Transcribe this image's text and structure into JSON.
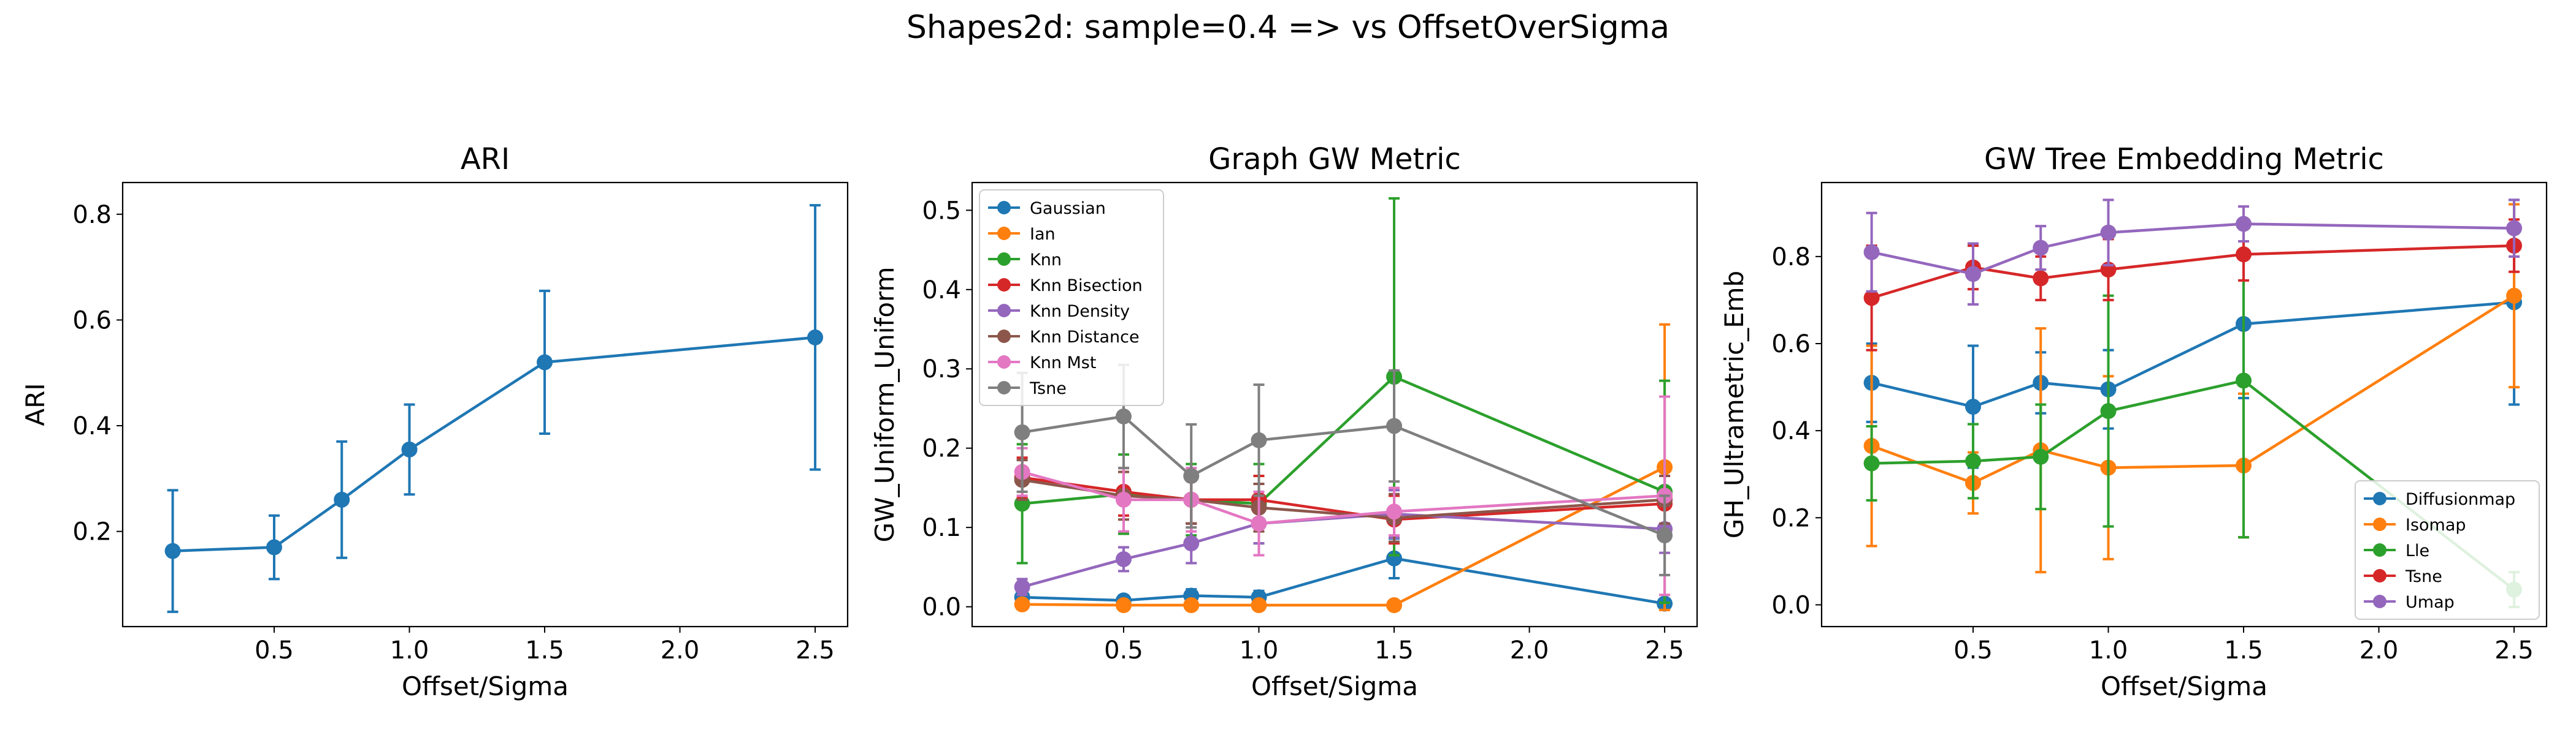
{
  "figure": {
    "suptitle": "Shapes2d: sample=0.4 => vs OffsetOverSigma"
  },
  "chart_data": [
    {
      "type": "line",
      "title": "ARI",
      "xlabel": "Offset/Sigma",
      "ylabel": "ARI",
      "x": [
        0.125,
        0.5,
        0.75,
        1.0,
        1.5,
        2.5
      ],
      "xlim": [
        -0.06,
        2.62
      ],
      "ylim": [
        0.02,
        0.86
      ],
      "xticks": [
        0.5,
        1.0,
        1.5,
        2.0,
        2.5
      ],
      "xticklabels": [
        "0.5",
        "1.0",
        "1.5",
        "2.0",
        "2.5"
      ],
      "yticks": [
        0.2,
        0.4,
        0.6,
        0.8
      ],
      "yticklabels": [
        "0.2",
        "0.4",
        "0.6",
        "0.8"
      ],
      "legend": null,
      "series": [
        {
          "name": "",
          "color": "#1f77b4",
          "values": [
            0.163,
            0.17,
            0.26,
            0.355,
            0.52,
            0.567
          ],
          "err": [
            0.115,
            0.06,
            0.11,
            0.085,
            0.135,
            0.25
          ]
        }
      ]
    },
    {
      "type": "line",
      "title": "Graph GW Metric",
      "xlabel": "Offset/Sigma",
      "ylabel": "GW_Uniform_Uniform",
      "x": [
        0.125,
        0.5,
        0.75,
        1.0,
        1.5,
        2.5
      ],
      "xlim": [
        -0.06,
        2.62
      ],
      "ylim": [
        -0.025,
        0.535
      ],
      "xticks": [
        0.5,
        1.0,
        1.5,
        2.0,
        2.5
      ],
      "xticklabels": [
        "0.5",
        "1.0",
        "1.5",
        "2.0",
        "2.5"
      ],
      "yticks": [
        0.0,
        0.1,
        0.2,
        0.3,
        0.4,
        0.5
      ],
      "yticklabels": [
        "0.0",
        "0.1",
        "0.2",
        "0.3",
        "0.4",
        "0.5"
      ],
      "legend": "upper-left",
      "series": [
        {
          "name": "Gaussian",
          "color": "#1f77b4",
          "values": [
            0.012,
            0.008,
            0.014,
            0.012,
            0.061,
            0.004
          ],
          "err": [
            0.008,
            0.006,
            0.008,
            0.008,
            0.025,
            0.004
          ]
        },
        {
          "name": "Ian",
          "color": "#ff7f0e",
          "values": [
            0.003,
            0.002,
            0.002,
            0.002,
            0.002,
            0.176
          ],
          "err": [
            0.003,
            0.002,
            0.002,
            0.002,
            0.002,
            0.18
          ]
        },
        {
          "name": "Knn",
          "color": "#2ca02c",
          "values": [
            0.13,
            0.142,
            0.135,
            0.13,
            0.29,
            0.145
          ],
          "err": [
            0.075,
            0.05,
            0.045,
            0.05,
            0.225,
            0.14
          ]
        },
        {
          "name": "Knn Bisection",
          "color": "#d62728",
          "values": [
            0.163,
            0.145,
            0.135,
            0.135,
            0.11,
            0.13
          ],
          "err": [
            0.025,
            0.03,
            0.03,
            0.03,
            0.03,
            0.035
          ]
        },
        {
          "name": "Knn Density",
          "color": "#9467bd",
          "values": [
            0.025,
            0.06,
            0.08,
            0.105,
            0.117,
            0.098
          ],
          "err": [
            0.01,
            0.015,
            0.025,
            0.025,
            0.03,
            0.03
          ]
        },
        {
          "name": "Knn Distance",
          "color": "#8c564b",
          "values": [
            0.16,
            0.14,
            0.135,
            0.125,
            0.112,
            0.135
          ],
          "err": [
            0.025,
            0.03,
            0.03,
            0.03,
            0.03,
            0.03
          ]
        },
        {
          "name": "Knn Mst",
          "color": "#e377c2",
          "values": [
            0.17,
            0.135,
            0.135,
            0.105,
            0.12,
            0.14
          ],
          "err": [
            0.03,
            0.04,
            0.04,
            0.04,
            0.03,
            0.125
          ]
        },
        {
          "name": "Tsne",
          "color": "#7f7f7f",
          "values": [
            0.22,
            0.24,
            0.165,
            0.21,
            0.228,
            0.09
          ],
          "err": [
            0.075,
            0.065,
            0.065,
            0.07,
            0.07,
            0.05
          ]
        }
      ]
    },
    {
      "type": "line",
      "title": "GW Tree Embedding Metric",
      "xlabel": "Offset/Sigma",
      "ylabel": "GH_Ultrametric_Emb",
      "x": [
        0.125,
        0.5,
        0.75,
        1.0,
        1.5,
        2.5
      ],
      "xlim": [
        -0.06,
        2.62
      ],
      "ylim": [
        -0.05,
        0.97
      ],
      "xticks": [
        0.5,
        1.0,
        1.5,
        2.0,
        2.5
      ],
      "xticklabels": [
        "0.5",
        "1.0",
        "1.5",
        "2.0",
        "2.5"
      ],
      "yticks": [
        0.0,
        0.2,
        0.4,
        0.6,
        0.8
      ],
      "yticklabels": [
        "0.0",
        "0.2",
        "0.4",
        "0.6",
        "0.8"
      ],
      "legend": "lower-right",
      "series": [
        {
          "name": "Diffusionmap",
          "color": "#1f77b4",
          "values": [
            0.51,
            0.455,
            0.51,
            0.495,
            0.645,
            0.695
          ],
          "err": [
            0.09,
            0.14,
            0.07,
            0.09,
            0.17,
            0.235
          ]
        },
        {
          "name": "Isomap",
          "color": "#ff7f0e",
          "values": [
            0.365,
            0.28,
            0.355,
            0.315,
            0.32,
            0.71
          ],
          "err": [
            0.23,
            0.07,
            0.28,
            0.21,
            0.165,
            0.21
          ]
        },
        {
          "name": "Lle",
          "color": "#2ca02c",
          "values": [
            0.325,
            0.33,
            0.34,
            0.445,
            0.515,
            0.035
          ],
          "err": [
            0.085,
            0.085,
            0.12,
            0.265,
            0.36,
            0.04
          ]
        },
        {
          "name": "Tsne",
          "color": "#d62728",
          "values": [
            0.705,
            0.775,
            0.75,
            0.77,
            0.805,
            0.825
          ],
          "err": [
            0.12,
            0.05,
            0.05,
            0.07,
            0.06,
            0.06
          ]
        },
        {
          "name": "Umap",
          "color": "#9467bd",
          "values": [
            0.81,
            0.76,
            0.82,
            0.855,
            0.875,
            0.865
          ],
          "err": [
            0.09,
            0.07,
            0.05,
            0.075,
            0.04,
            0.065
          ]
        }
      ]
    }
  ]
}
